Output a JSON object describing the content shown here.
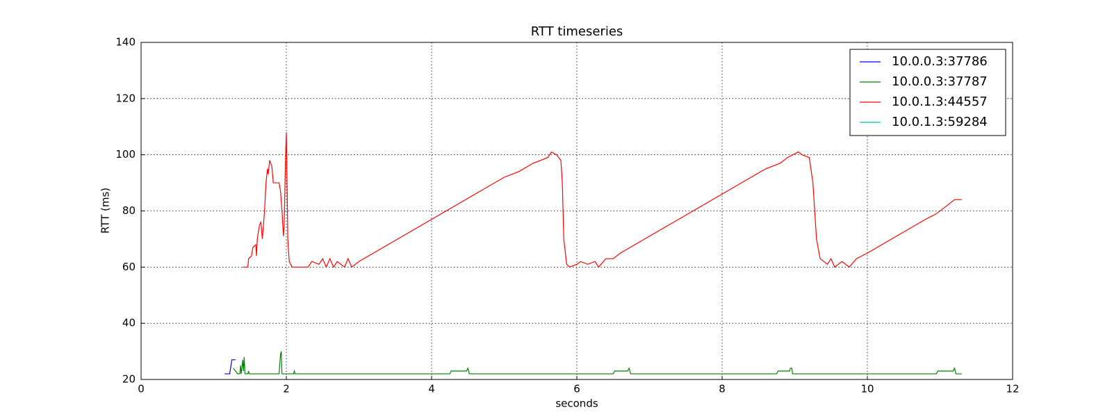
{
  "chart_data": {
    "type": "line",
    "title": "RTT timeseries",
    "x_label": "seconds",
    "y_label": "RTT (ms)",
    "xlim": [
      0,
      12
    ],
    "xticks": [
      0,
      2,
      4,
      6,
      8,
      10,
      12
    ],
    "ylim": [
      20,
      140
    ],
    "yticks": [
      20,
      40,
      60,
      80,
      100,
      120,
      140
    ],
    "grid": true,
    "legend": "upper right",
    "series": [
      {
        "name": "10.0.0.3:37786",
        "color": "#0000ff",
        "x": [
          1.15,
          1.22,
          1.25,
          1.3
        ],
        "values": [
          22,
          22,
          27,
          27
        ]
      },
      {
        "name": "10.0.0.3:37787",
        "color": "#008000",
        "x": [
          1.27,
          1.3,
          1.33,
          1.36,
          1.37,
          1.38,
          1.4,
          1.41,
          1.42,
          1.43,
          1.47,
          1.48,
          1.49,
          1.9,
          1.92,
          1.93,
          1.94,
          2.1,
          2.11,
          2.12,
          4.25,
          4.27,
          4.48,
          4.5,
          4.52,
          6.5,
          6.52,
          6.7,
          6.72,
          6.74,
          8.75,
          8.77,
          8.93,
          8.94,
          8.96,
          8.97,
          10.95,
          10.97,
          11.18,
          11.2,
          11.22,
          11.3
        ],
        "values": [
          24,
          23,
          22,
          22,
          25,
          22,
          27,
          23,
          28,
          22,
          22,
          23,
          22,
          22,
          29,
          30,
          22,
          22,
          23,
          22,
          22,
          23,
          23,
          24,
          22,
          22,
          23,
          23,
          24,
          22,
          22,
          23,
          23,
          24,
          24,
          22,
          22,
          23,
          23,
          24,
          22,
          22
        ]
      },
      {
        "name": "10.0.1.3:44557",
        "color": "#ff0000",
        "x": [
          1.4,
          1.47,
          1.48,
          1.52,
          1.54,
          1.58,
          1.59,
          1.6,
          1.63,
          1.65,
          1.67,
          1.7,
          1.72,
          1.74,
          1.75,
          1.77,
          1.8,
          1.82,
          1.9,
          1.92,
          1.94,
          1.96,
          1.97,
          1.99,
          2.0,
          2.01,
          2.02,
          2.04,
          2.08,
          2.3,
          2.35,
          2.45,
          2.5,
          2.55,
          2.6,
          2.65,
          2.7,
          2.8,
          2.85,
          2.9,
          3.0,
          3.2,
          3.4,
          3.6,
          3.8,
          4.0,
          4.2,
          4.4,
          4.6,
          4.8,
          5.0,
          5.2,
          5.4,
          5.6,
          5.65,
          5.72,
          5.78,
          5.8,
          5.82,
          5.86,
          5.9,
          6.0,
          6.05,
          6.15,
          6.25,
          6.3,
          6.4,
          6.5,
          6.6,
          6.8,
          7.0,
          7.2,
          7.4,
          7.6,
          7.8,
          8.0,
          8.2,
          8.4,
          8.6,
          8.8,
          8.9,
          9.05,
          9.1,
          9.2,
          9.25,
          9.3,
          9.35,
          9.45,
          9.5,
          9.55,
          9.65,
          9.75,
          9.85,
          10.0,
          10.2,
          10.4,
          10.6,
          10.8,
          10.95,
          11.1,
          11.2,
          11.3
        ],
        "values": [
          60,
          60,
          63,
          64,
          67,
          68,
          64,
          70,
          75,
          76,
          70,
          80,
          90,
          95,
          93,
          98,
          96,
          90,
          90,
          87,
          80,
          71,
          75,
          100,
          108,
          90,
          70,
          62,
          60,
          60,
          62,
          61,
          63,
          60,
          63,
          60,
          62,
          60,
          63,
          60,
          62,
          65,
          68,
          71,
          74,
          77,
          80,
          83,
          86,
          89,
          92,
          94,
          97,
          99,
          101,
          100,
          98,
          90,
          70,
          61,
          60,
          61,
          62,
          61,
          62,
          60,
          63,
          63,
          65,
          68,
          71,
          74,
          77,
          80,
          83,
          86,
          89,
          92,
          95,
          97,
          99,
          101,
          100,
          99,
          90,
          70,
          63,
          61,
          63,
          60,
          62,
          60,
          63,
          65,
          68,
          71,
          74,
          77,
          79,
          82,
          84,
          84
        ]
      },
      {
        "name": "10.0.1.3:59284",
        "color": "#00bfbf",
        "x": [],
        "values": []
      }
    ]
  }
}
